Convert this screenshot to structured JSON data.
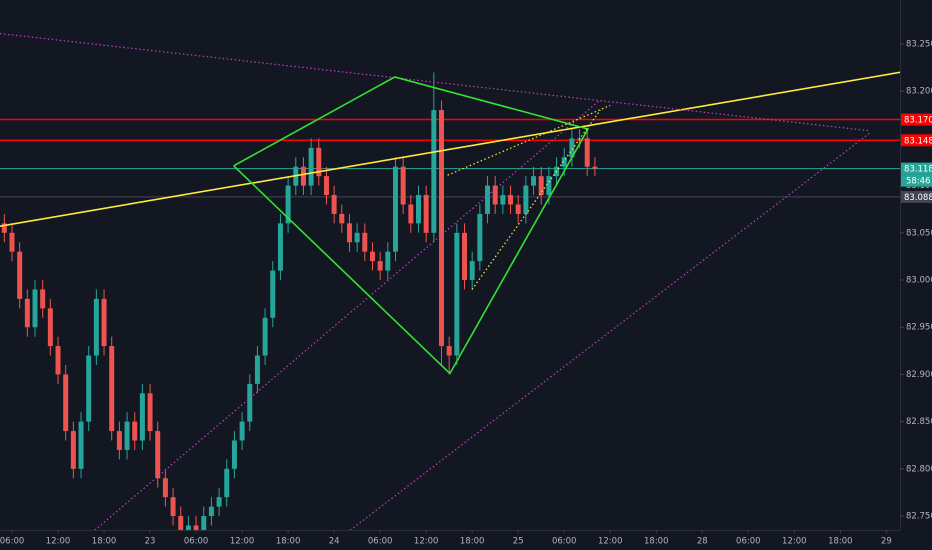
{
  "chart_data": {
    "type": "candlestick",
    "x": [
      -1,
      0,
      1,
      2,
      3,
      4,
      5,
      6,
      7,
      8,
      9,
      10,
      11,
      12,
      13,
      14,
      15,
      16,
      17,
      18,
      19,
      20,
      21,
      22,
      23,
      24,
      25,
      26,
      27,
      28,
      29,
      30,
      31,
      32,
      33,
      34,
      35,
      36,
      37,
      38,
      39,
      40,
      41,
      42,
      43,
      44,
      45,
      46,
      47,
      48,
      49,
      50,
      51,
      52,
      53,
      54,
      55,
      56,
      57,
      58,
      59,
      60,
      61,
      62,
      63,
      64,
      65,
      66,
      67,
      68,
      69,
      70,
      71,
      72,
      73,
      74,
      75,
      76
    ],
    "open": [
      83.06,
      83.05,
      83.03,
      82.98,
      82.95,
      82.99,
      82.97,
      82.93,
      82.9,
      82.84,
      82.8,
      82.85,
      82.92,
      82.98,
      82.93,
      82.84,
      82.82,
      82.85,
      82.83,
      82.88,
      82.84,
      82.79,
      82.77,
      82.75,
      82.73,
      82.74,
      82.72,
      82.75,
      82.76,
      82.77,
      82.8,
      82.83,
      82.85,
      82.89,
      82.92,
      82.96,
      83.01,
      83.06,
      83.1,
      83.12,
      83.1,
      83.14,
      83.11,
      83.09,
      83.07,
      83.06,
      83.04,
      83.05,
      83.03,
      83.02,
      83.01,
      83.03,
      83.12,
      83.08,
      83.06,
      83.09,
      83.05,
      83.18,
      82.93,
      82.92,
      83.05,
      83.0,
      83.02,
      83.07,
      83.1,
      83.08,
      83.09,
      83.08,
      83.07,
      83.1,
      83.11,
      83.09,
      83.11,
      83.12,
      83.13,
      83.15,
      83.15,
      83.12
    ],
    "high": [
      83.07,
      83.06,
      83.04,
      82.99,
      83.0,
      83.0,
      82.98,
      82.94,
      82.91,
      82.85,
      82.86,
      82.93,
      82.99,
      82.99,
      82.94,
      82.85,
      82.86,
      82.86,
      82.89,
      82.89,
      82.85,
      82.8,
      82.78,
      82.76,
      82.75,
      82.75,
      82.76,
      82.77,
      82.78,
      82.81,
      82.84,
      82.86,
      82.9,
      82.93,
      82.97,
      83.02,
      83.07,
      83.11,
      83.13,
      83.13,
      83.15,
      83.15,
      83.12,
      83.1,
      83.08,
      83.07,
      83.06,
      83.06,
      83.04,
      83.03,
      83.04,
      83.13,
      83.13,
      83.09,
      83.1,
      83.1,
      83.22,
      83.19,
      82.94,
      83.06,
      83.06,
      83.03,
      83.08,
      83.11,
      83.11,
      83.1,
      83.1,
      83.09,
      83.11,
      83.12,
      83.12,
      83.12,
      83.13,
      83.14,
      83.16,
      83.16,
      83.16,
      83.13
    ],
    "low": [
      83.04,
      83.02,
      82.97,
      82.94,
      82.94,
      82.96,
      82.92,
      82.89,
      82.83,
      82.79,
      82.79,
      82.84,
      82.91,
      82.92,
      82.83,
      82.81,
      82.81,
      82.82,
      82.82,
      82.83,
      82.78,
      82.76,
      82.74,
      82.72,
      82.72,
      82.71,
      82.71,
      82.74,
      82.75,
      82.76,
      82.79,
      82.82,
      82.84,
      82.88,
      82.91,
      82.95,
      83.0,
      83.05,
      83.09,
      83.09,
      83.09,
      83.1,
      83.08,
      83.06,
      83.05,
      83.03,
      83.03,
      83.02,
      83.01,
      83.0,
      83.0,
      83.02,
      83.07,
      83.05,
      83.05,
      83.04,
      83.04,
      82.91,
      82.9,
      82.91,
      82.99,
      82.99,
      83.01,
      83.06,
      83.07,
      83.07,
      83.07,
      83.06,
      83.06,
      83.09,
      83.08,
      83.08,
      83.1,
      83.11,
      83.12,
      83.14,
      83.11,
      83.11
    ],
    "close": [
      83.05,
      83.03,
      82.98,
      82.95,
      82.99,
      82.97,
      82.93,
      82.9,
      82.84,
      82.8,
      82.85,
      82.92,
      82.98,
      82.93,
      82.84,
      82.82,
      82.85,
      82.83,
      82.88,
      82.84,
      82.79,
      82.77,
      82.75,
      82.73,
      82.74,
      82.72,
      82.75,
      82.76,
      82.77,
      82.8,
      82.83,
      82.85,
      82.89,
      82.92,
      82.96,
      83.01,
      83.06,
      83.1,
      83.12,
      83.1,
      83.14,
      83.11,
      83.09,
      83.07,
      83.06,
      83.04,
      83.05,
      83.03,
      83.02,
      83.01,
      83.03,
      83.12,
      83.08,
      83.06,
      83.09,
      83.05,
      83.18,
      82.93,
      82.92,
      83.05,
      83.0,
      83.02,
      83.07,
      83.1,
      83.08,
      83.09,
      83.08,
      83.07,
      83.1,
      83.11,
      83.09,
      83.11,
      83.12,
      83.13,
      83.15,
      83.15,
      83.12,
      83.118
    ],
    "up_color": "#26a69a",
    "down_color": "#ef5350",
    "xlim": [
      -1.565,
      115.78
    ],
    "ylim": [
      82.7352,
      83.2966
    ],
    "xticks": [
      {
        "value": 0,
        "label": "06:00"
      },
      {
        "value": 6,
        "label": "12:00"
      },
      {
        "value": 12,
        "label": "18:00"
      },
      {
        "value": 18,
        "label": "23"
      },
      {
        "value": 24,
        "label": "06:00"
      },
      {
        "value": 30,
        "label": "12:00"
      },
      {
        "value": 36,
        "label": "18:00"
      },
      {
        "value": 42,
        "label": "24"
      },
      {
        "value": 48,
        "label": "06:00"
      },
      {
        "value": 54,
        "label": "12:00"
      },
      {
        "value": 60,
        "label": "18:00"
      },
      {
        "value": 66,
        "label": "25"
      },
      {
        "value": 72,
        "label": "06:00"
      },
      {
        "value": 78,
        "label": "12:00"
      },
      {
        "value": 84,
        "label": "18:00"
      },
      {
        "value": 90,
        "label": "28"
      },
      {
        "value": 96,
        "label": "06:00"
      },
      {
        "value": 102,
        "label": "12:00"
      },
      {
        "value": 108,
        "label": "18:00"
      },
      {
        "value": 114,
        "label": "29"
      }
    ],
    "yticks": [
      {
        "value": 83.25,
        "label": "83.250"
      },
      {
        "value": 83.2,
        "label": "83.200"
      },
      {
        "value": 83.15,
        "label": "83.150"
      },
      {
        "value": 83.1,
        "label": "83.100"
      },
      {
        "value": 83.05,
        "label": "83.050"
      },
      {
        "value": 83.0,
        "label": "83.000"
      },
      {
        "value": 82.95,
        "label": "82.950"
      },
      {
        "value": 82.9,
        "label": "82.900"
      },
      {
        "value": 82.85,
        "label": "82.850"
      },
      {
        "value": 82.8,
        "label": "82.800"
      },
      {
        "value": 82.75,
        "label": "82.750"
      }
    ],
    "grid": false,
    "price_lines": [
      {
        "value": 83.17,
        "label": "83.170",
        "color": "#ff0000"
      },
      {
        "value": 83.148,
        "label": "83.148",
        "color": "#ff0000"
      },
      {
        "value": 83.118,
        "label": "83.118",
        "color": "#26a69a"
      },
      {
        "value": 83.088,
        "label": "83.088",
        "color": "#434651"
      }
    ],
    "countdown": "58:46",
    "drawings": [
      {
        "color": "#ffeb3b",
        "style": "solid",
        "x": [
          -1.56,
          115.8
        ],
        "y": [
          83.057,
          83.22
        ]
      },
      {
        "color": "#c040c0",
        "style": "dotted",
        "x": [
          -1.56,
          111.9
        ],
        "y": [
          83.261,
          83.158
        ]
      },
      {
        "color": "#c040c0",
        "style": "dotted",
        "x": [
          10.8,
          76.7
        ],
        "y": [
          82.735,
          83.191
        ]
      },
      {
        "color": "#c040c0",
        "style": "dotted",
        "x": [
          44.1,
          111.9
        ],
        "y": [
          82.735,
          83.156
        ]
      },
      {
        "color": "#32e332",
        "style": "solid",
        "x": [
          28.9,
          49.9,
          75.1,
          57.1,
          28.9
        ],
        "y": [
          83.121,
          83.215,
          83.16,
          82.901,
          83.121
        ]
      },
      {
        "color": "#ffeb3b",
        "style": "dotted",
        "x": [
          56.8,
          78.0
        ],
        "y": [
          83.111,
          83.185
        ]
      },
      {
        "color": "#ffeb3b",
        "style": "dotted",
        "x": [
          59.97,
          76.7
        ],
        "y": [
          82.99,
          83.18
        ]
      }
    ]
  }
}
